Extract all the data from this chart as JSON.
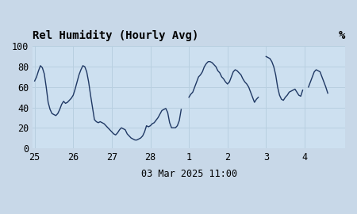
{
  "title_left": "Rel Humidity (Hourly Avg)",
  "title_right": "%",
  "xlabel": "03 Mar 2025 11:00",
  "ylim": [
    0,
    100
  ],
  "xlim": [
    -0.05,
    8.05
  ],
  "yticks": [
    0,
    20,
    40,
    60,
    80,
    100
  ],
  "xtick_positions": [
    0,
    1,
    2,
    3,
    4,
    5,
    6,
    7
  ],
  "xticklabels": [
    "25",
    "26",
    "27",
    "28",
    "1",
    "2",
    "3",
    "4"
  ],
  "background_color": "#cde0f0",
  "outer_background": "#c8d8e8",
  "line_color": "#1f3864",
  "line_width": 1.0,
  "grid_color": "#b8cfe0",
  "title_fontsize": 10,
  "tick_fontsize": 8.5,
  "x": [
    0.0,
    0.05,
    0.1,
    0.15,
    0.2,
    0.25,
    0.3,
    0.35,
    0.4,
    0.45,
    0.5,
    0.55,
    0.6,
    0.65,
    0.7,
    0.75,
    0.8,
    0.85,
    0.9,
    0.95,
    1.0,
    1.05,
    1.1,
    1.15,
    1.2,
    1.25,
    1.3,
    1.35,
    1.4,
    1.45,
    1.5,
    1.55,
    1.6,
    1.65,
    1.7,
    1.75,
    1.8,
    1.85,
    1.9,
    1.95,
    2.0,
    2.05,
    2.1,
    2.15,
    2.2,
    2.25,
    2.3,
    2.35,
    2.4,
    2.45,
    2.5,
    2.55,
    2.6,
    2.65,
    2.7,
    2.75,
    2.8,
    2.85,
    2.9,
    2.95,
    3.0,
    3.05,
    3.1,
    3.2,
    3.3,
    3.4,
    3.45,
    3.5,
    3.55,
    3.6,
    3.65,
    3.7,
    3.75,
    3.8,
    null,
    4.0,
    4.05,
    4.1,
    4.15,
    4.2,
    4.25,
    4.3,
    4.35,
    4.4,
    4.45,
    4.5,
    4.55,
    4.6,
    4.65,
    4.7,
    4.75,
    4.8,
    4.85,
    4.9,
    4.95,
    5.0,
    5.05,
    5.1,
    5.15,
    5.2,
    5.25,
    5.3,
    5.35,
    5.4,
    5.45,
    5.5,
    5.55,
    5.6,
    5.65,
    5.7,
    5.75,
    5.8,
    null,
    6.0,
    6.1,
    6.15,
    6.2,
    6.25,
    6.3,
    6.35,
    6.4,
    6.45,
    6.5,
    6.55,
    6.6,
    6.65,
    6.7,
    6.75,
    6.8,
    6.85,
    6.9,
    6.95,
    null,
    7.1,
    7.15,
    7.2,
    7.25,
    7.3,
    7.35,
    7.4,
    7.45,
    7.5,
    7.55,
    7.6
  ],
  "y": [
    66,
    70,
    76,
    81,
    79,
    73,
    60,
    45,
    38,
    34,
    33,
    32,
    34,
    38,
    43,
    46,
    44,
    45,
    47,
    49,
    52,
    58,
    65,
    72,
    77,
    81,
    80,
    75,
    65,
    52,
    40,
    28,
    26,
    25,
    26,
    25,
    24,
    22,
    20,
    18,
    16,
    14,
    13,
    15,
    18,
    20,
    19,
    18,
    14,
    12,
    10,
    9,
    8,
    8,
    9,
    10,
    12,
    16,
    22,
    21,
    22,
    24,
    25,
    30,
    37,
    39,
    35,
    25,
    20,
    20,
    20,
    22,
    27,
    38,
    null,
    50,
    53,
    55,
    60,
    65,
    70,
    72,
    75,
    80,
    83,
    85,
    85,
    84,
    82,
    80,
    76,
    74,
    70,
    68,
    65,
    63,
    65,
    70,
    75,
    77,
    76,
    74,
    72,
    68,
    65,
    63,
    60,
    55,
    50,
    45,
    48,
    50,
    null,
    90,
    88,
    85,
    80,
    72,
    60,
    52,
    48,
    47,
    50,
    52,
    55,
    56,
    57,
    58,
    55,
    52,
    51,
    57,
    null,
    60,
    65,
    70,
    75,
    77,
    76,
    75,
    70,
    65,
    60,
    54
  ]
}
